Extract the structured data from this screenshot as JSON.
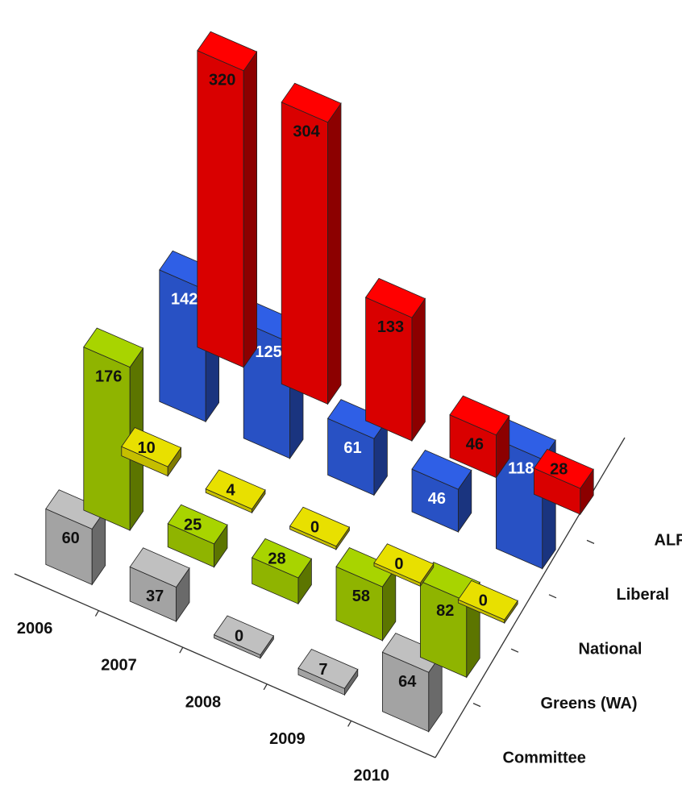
{
  "chart_data": {
    "type": "bar",
    "title": "",
    "categories": [
      "2006",
      "2007",
      "2008",
      "2009",
      "2010"
    ],
    "series": [
      {
        "name": "ALP",
        "values": [
          320,
          304,
          133,
          46,
          28
        ],
        "color": "#ff0000",
        "label_color": "#111111"
      },
      {
        "name": "Liberal",
        "values": [
          142,
          125,
          61,
          46,
          118
        ],
        "color": "#2f5fe6",
        "label_color": "#ffffff"
      },
      {
        "name": "National",
        "values": [
          10,
          4,
          0,
          0,
          0
        ],
        "color": "#e8e000",
        "label_color": "#111111"
      },
      {
        "name": "Greens (WA)",
        "values": [
          176,
          25,
          28,
          58,
          82
        ],
        "color": "#a8d400",
        "label_color": "#111111"
      },
      {
        "name": "Committee",
        "values": [
          60,
          37,
          0,
          7,
          64
        ],
        "color": "#c0c0c0",
        "label_color": "#111111"
      }
    ],
    "grid": false,
    "legend": "none"
  }
}
